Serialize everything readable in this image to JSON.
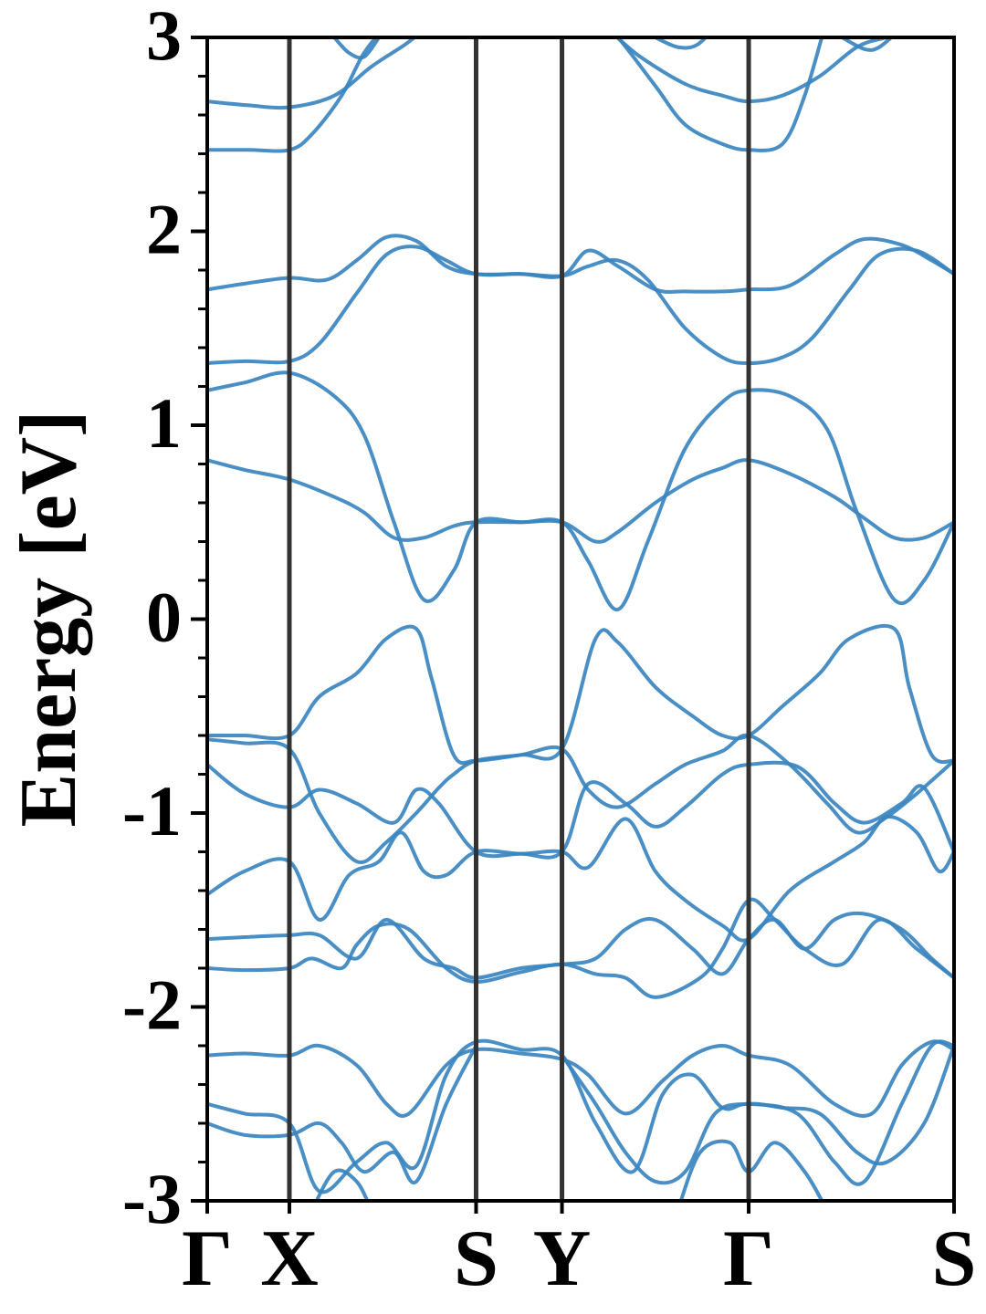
{
  "chart_data": {
    "type": "line",
    "title": "",
    "xlabel": "",
    "ylabel": "Energy [eV]",
    "ylim": [
      -3,
      3
    ],
    "yticks": [
      -3,
      -2,
      -1,
      0,
      1,
      2,
      3
    ],
    "ytick_labels": [
      "-3",
      "-2",
      "-1",
      "0",
      "1",
      "2",
      "3"
    ],
    "y_minor_step": 0.2,
    "grid": false,
    "legend": "none",
    "line_color": "#3a86c0",
    "kpath_color": "#333333",
    "kpath_labels": [
      "Γ",
      "X",
      "S",
      "Y",
      "Γ",
      "S"
    ],
    "kpath_positions": [
      0,
      0.11,
      0.36,
      0.475,
      0.725,
      1.0
    ],
    "xlim": [
      0,
      1.0
    ],
    "series": [
      {
        "x": [
          0,
          0.055,
          0.11,
          0.17,
          0.22,
          0.26,
          0.3,
          0.36,
          0.41,
          0.475,
          0.53,
          0.58,
          0.64,
          0.69,
          0.725,
          0.77,
          0.82,
          0.87,
          0.91,
          0.96,
          1.0
        ],
        "y": [
          2.67,
          2.65,
          2.64,
          2.7,
          2.85,
          2.95,
          3.05,
          3.1,
          3.1,
          3.1,
          3.05,
          2.9,
          2.76,
          2.7,
          2.67,
          2.7,
          2.8,
          2.95,
          3.0,
          3.05,
          3.1
        ]
      },
      {
        "x": [
          0,
          0.055,
          0.11,
          0.14,
          0.18,
          0.21,
          0.24,
          0.27
        ],
        "y": [
          2.42,
          2.42,
          2.42,
          2.5,
          2.7,
          2.92,
          3.05,
          3.1
        ]
      },
      {
        "x": [
          0.52,
          0.55,
          0.6,
          0.64,
          0.69,
          0.725,
          0.77,
          0.8,
          0.83
        ],
        "y": [
          3.1,
          3.0,
          2.75,
          2.55,
          2.45,
          2.42,
          2.45,
          2.7,
          3.1
        ]
      },
      {
        "x": [
          0.17,
          0.19,
          0.21,
          0.23
        ],
        "y": [
          3.0,
          2.92,
          2.9,
          3.0
        ]
      },
      {
        "x": [
          0.6,
          0.63,
          0.655,
          0.68
        ],
        "y": [
          3.0,
          2.95,
          2.96,
          3.05
        ]
      },
      {
        "x": [
          0.85,
          0.88,
          0.9,
          0.93
        ],
        "y": [
          3.0,
          2.94,
          2.95,
          3.05
        ]
      },
      {
        "x": [
          0,
          0.05,
          0.11,
          0.16,
          0.2,
          0.24,
          0.28,
          0.32,
          0.36,
          0.42,
          0.475,
          0.51,
          0.55,
          0.6,
          0.64,
          0.69,
          0.725,
          0.78,
          0.84,
          0.88,
          0.93,
          0.97,
          1.0
        ],
        "y": [
          1.7,
          1.73,
          1.76,
          1.75,
          1.85,
          1.97,
          1.95,
          1.82,
          1.78,
          1.78,
          1.77,
          1.9,
          1.82,
          1.7,
          1.69,
          1.69,
          1.7,
          1.72,
          1.88,
          1.96,
          1.93,
          1.85,
          1.78
        ]
      },
      {
        "x": [
          0,
          0.05,
          0.11,
          0.15,
          0.2,
          0.24,
          0.28,
          0.32,
          0.36,
          0.42,
          0.475,
          0.51,
          0.55,
          0.59,
          0.64,
          0.69,
          0.725,
          0.77,
          0.81,
          0.86,
          0.9,
          0.95,
          1.0
        ],
        "y": [
          1.32,
          1.33,
          1.33,
          1.42,
          1.68,
          1.88,
          1.92,
          1.85,
          1.78,
          1.78,
          1.77,
          1.82,
          1.85,
          1.75,
          1.5,
          1.35,
          1.32,
          1.35,
          1.45,
          1.7,
          1.88,
          1.9,
          1.78
        ]
      },
      {
        "x": [
          0,
          0.05,
          0.11,
          0.17,
          0.21,
          0.25,
          0.29,
          0.33,
          0.36,
          0.42,
          0.475,
          0.51,
          0.55,
          0.59,
          0.64,
          0.69,
          0.725,
          0.78,
          0.83,
          0.87,
          0.92,
          0.96,
          1.0
        ],
        "y": [
          1.18,
          1.22,
          1.27,
          1.15,
          0.95,
          0.5,
          0.1,
          0.25,
          0.5,
          0.5,
          0.5,
          0.3,
          0.05,
          0.4,
          0.88,
          1.12,
          1.18,
          1.15,
          0.98,
          0.55,
          0.1,
          0.2,
          0.5
        ]
      },
      {
        "x": [
          0,
          0.05,
          0.11,
          0.17,
          0.21,
          0.25,
          0.29,
          0.33,
          0.36,
          0.42,
          0.475,
          0.52,
          0.55,
          0.6,
          0.65,
          0.69,
          0.725,
          0.78,
          0.84,
          0.88,
          0.92,
          0.96,
          1.0
        ],
        "y": [
          0.82,
          0.77,
          0.72,
          0.63,
          0.55,
          0.42,
          0.42,
          0.48,
          0.5,
          0.5,
          0.5,
          0.4,
          0.45,
          0.6,
          0.72,
          0.78,
          0.82,
          0.75,
          0.63,
          0.52,
          0.42,
          0.42,
          0.5
        ]
      },
      {
        "x": [
          0,
          0.05,
          0.11,
          0.15,
          0.2,
          0.24,
          0.28,
          0.3,
          0.33,
          0.36,
          0.42,
          0.475,
          0.52,
          0.55,
          0.6,
          0.65,
          0.69,
          0.725,
          0.77,
          0.82,
          0.86,
          0.92,
          0.94,
          0.97,
          1.0
        ],
        "y": [
          -0.6,
          -0.6,
          -0.6,
          -0.4,
          -0.28,
          -0.1,
          -0.05,
          -0.3,
          -0.7,
          -0.73,
          -0.7,
          -0.67,
          -0.1,
          -0.12,
          -0.35,
          -0.5,
          -0.6,
          -0.6,
          -0.45,
          -0.28,
          -0.1,
          -0.05,
          -0.35,
          -0.7,
          -0.73
        ]
      },
      {
        "x": [
          0,
          0.05,
          0.11,
          0.15,
          0.2,
          0.24,
          0.28,
          0.31,
          0.33,
          0.36,
          0.42,
          0.475,
          0.51,
          0.55,
          0.6,
          0.64,
          0.69,
          0.725,
          0.78,
          0.83,
          0.87,
          0.91,
          0.95,
          1.0
        ],
        "y": [
          -0.62,
          -0.64,
          -0.67,
          -1.0,
          -1.25,
          -1.15,
          -1.0,
          -0.87,
          -0.8,
          -0.73,
          -0.7,
          -0.67,
          -0.88,
          -0.97,
          -0.85,
          -0.75,
          -0.68,
          -0.6,
          -0.75,
          -0.95,
          -1.1,
          -1.02,
          -0.9,
          -0.73
        ]
      },
      {
        "x": [
          0,
          0.05,
          0.11,
          0.15,
          0.2,
          0.25,
          0.28,
          0.31,
          0.36,
          0.42,
          0.475,
          0.51,
          0.56,
          0.6,
          0.64,
          0.69,
          0.725,
          0.79,
          0.84,
          0.88,
          0.93,
          0.96,
          1.0
        ],
        "y": [
          -0.75,
          -0.9,
          -0.97,
          -0.88,
          -0.95,
          -1.05,
          -0.88,
          -0.95,
          -1.2,
          -1.21,
          -1.2,
          -0.85,
          -0.95,
          -1.07,
          -0.97,
          -0.8,
          -0.75,
          -0.76,
          -0.95,
          -1.05,
          -0.95,
          -0.87,
          -1.2
        ]
      },
      {
        "x": [
          0,
          0.05,
          0.11,
          0.15,
          0.19,
          0.23,
          0.26,
          0.29,
          0.32,
          0.36,
          0.42,
          0.475,
          0.51,
          0.56,
          0.6,
          0.64,
          0.69,
          0.725,
          0.78,
          0.84,
          0.88,
          0.91,
          0.95,
          0.98,
          1.0
        ],
        "y": [
          -1.42,
          -1.3,
          -1.25,
          -1.55,
          -1.32,
          -1.25,
          -1.1,
          -1.3,
          -1.32,
          -1.2,
          -1.21,
          -1.2,
          -1.28,
          -1.03,
          -1.3,
          -1.45,
          -1.58,
          -1.65,
          -1.4,
          -1.25,
          -1.15,
          -1.02,
          -1.1,
          -1.3,
          -1.2
        ]
      },
      {
        "x": [
          0,
          0.05,
          0.11,
          0.15,
          0.2,
          0.24,
          0.29,
          0.33,
          0.36,
          0.42,
          0.475,
          0.52,
          0.56,
          0.6,
          0.65,
          0.69,
          0.725,
          0.76,
          0.8,
          0.84,
          0.88,
          0.93,
          0.97,
          1.0
        ],
        "y": [
          -1.65,
          -1.64,
          -1.63,
          -1.63,
          -1.75,
          -1.55,
          -1.75,
          -1.8,
          -1.85,
          -1.8,
          -1.78,
          -1.75,
          -1.6,
          -1.55,
          -1.7,
          -1.83,
          -1.65,
          -1.55,
          -1.7,
          -1.55,
          -1.52,
          -1.6,
          -1.75,
          -1.85
        ]
      },
      {
        "x": [
          0,
          0.05,
          0.11,
          0.14,
          0.18,
          0.2,
          0.23,
          0.27,
          0.32,
          0.36,
          0.42,
          0.475,
          0.52,
          0.56,
          0.6,
          0.66,
          0.69,
          0.725,
          0.76,
          0.8,
          0.85,
          0.9,
          0.95,
          1.0
        ],
        "y": [
          -1.8,
          -1.81,
          -1.8,
          -1.75,
          -1.8,
          -1.68,
          -1.58,
          -1.6,
          -1.8,
          -1.87,
          -1.82,
          -1.78,
          -1.83,
          -1.85,
          -1.95,
          -1.85,
          -1.7,
          -1.45,
          -1.55,
          -1.7,
          -1.78,
          -1.55,
          -1.7,
          -1.85
        ]
      },
      {
        "x": [
          0,
          0.05,
          0.11,
          0.15,
          0.2,
          0.24,
          0.27,
          0.32,
          0.36,
          0.42,
          0.475,
          0.51,
          0.56,
          0.61,
          0.65,
          0.69,
          0.725,
          0.78,
          0.84,
          0.89,
          0.93,
          0.97,
          1.0
        ],
        "y": [
          -2.25,
          -2.24,
          -2.25,
          -2.2,
          -2.3,
          -2.5,
          -2.55,
          -2.3,
          -2.22,
          -2.24,
          -2.27,
          -2.35,
          -2.55,
          -2.38,
          -2.25,
          -2.2,
          -2.25,
          -2.3,
          -2.5,
          -2.55,
          -2.3,
          -2.18,
          -2.22
        ]
      },
      {
        "x": [
          0,
          0.05,
          0.11,
          0.15,
          0.2,
          0.24,
          0.28,
          0.32,
          0.36,
          0.42,
          0.475,
          0.52,
          0.57,
          0.61,
          0.65,
          0.69,
          0.725,
          0.79,
          0.84,
          0.88,
          0.93,
          0.97,
          1.0
        ],
        "y": [
          -2.5,
          -2.55,
          -2.6,
          -2.95,
          -2.8,
          -2.7,
          -2.82,
          -2.35,
          -2.18,
          -2.22,
          -2.25,
          -2.6,
          -2.85,
          -2.45,
          -2.35,
          -2.52,
          -2.5,
          -2.55,
          -2.8,
          -2.9,
          -2.5,
          -2.2,
          -2.2
        ]
      },
      {
        "x": [
          0,
          0.05,
          0.11,
          0.15,
          0.18,
          0.21,
          0.25,
          0.28,
          0.32,
          0.36
        ],
        "y": [
          -2.6,
          -2.66,
          -2.66,
          -2.6,
          -2.7,
          -2.85,
          -2.75,
          -2.9,
          -2.5,
          -2.2
        ]
      },
      {
        "x": [
          0.475,
          0.52,
          0.56,
          0.6,
          0.64,
          0.68,
          0.725,
          0.77,
          0.82,
          0.87,
          0.91,
          0.96,
          1.0
        ],
        "y": [
          -2.25,
          -2.5,
          -2.75,
          -2.9,
          -2.85,
          -2.55,
          -2.5,
          -2.52,
          -2.55,
          -2.75,
          -2.8,
          -2.6,
          -2.2
        ]
      },
      {
        "x": [
          0.14,
          0.17,
          0.2,
          0.22
        ],
        "y": [
          -3.05,
          -2.85,
          -2.9,
          -3.05
        ]
      },
      {
        "x": [
          0.63,
          0.66,
          0.7,
          0.725,
          0.76,
          0.8,
          0.83
        ],
        "y": [
          -3.05,
          -2.75,
          -2.7,
          -2.85,
          -2.7,
          -2.85,
          -3.05
        ]
      }
    ]
  }
}
